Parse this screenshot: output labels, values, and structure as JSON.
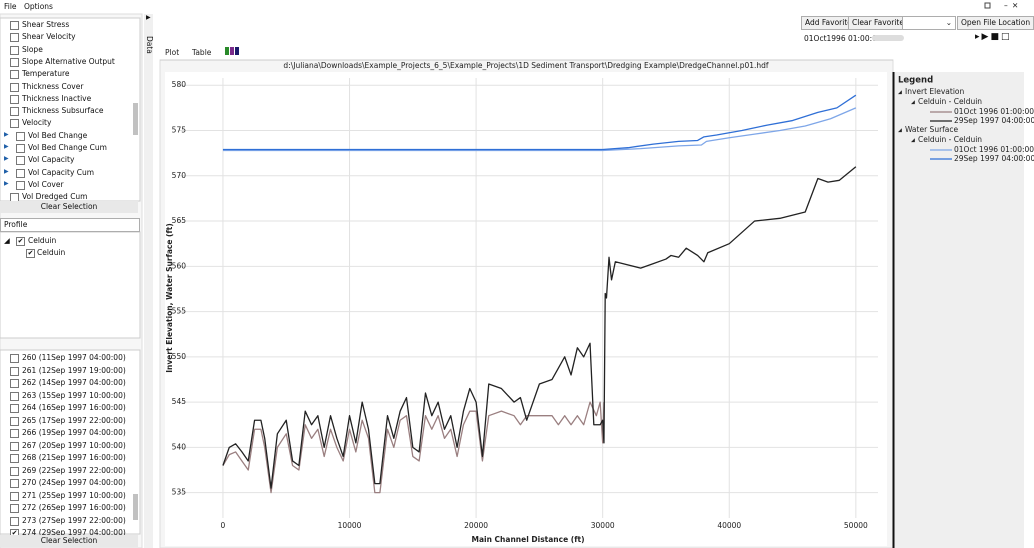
{
  "menu": [
    "File",
    "Options"
  ],
  "variables": {
    "items": [
      {
        "label": "Shear Stress",
        "expander": false
      },
      {
        "label": "Shear Velocity",
        "expander": false
      },
      {
        "label": "Slope",
        "expander": false
      },
      {
        "label": "Slope Alternative Output",
        "expander": false
      },
      {
        "label": "Temperature",
        "expander": false
      },
      {
        "label": "Thickness Cover",
        "expander": false
      },
      {
        "label": "Thickness Inactive",
        "expander": false
      },
      {
        "label": "Thickness Subsurface",
        "expander": false
      },
      {
        "label": "Velocity",
        "expander": false
      },
      {
        "label": "Vol Bed Change",
        "expander": true
      },
      {
        "label": "Vol Bed Change Cum",
        "expander": true
      },
      {
        "label": "Vol Capacity",
        "expander": true
      },
      {
        "label": "Vol Capacity Cum",
        "expander": true
      },
      {
        "label": "Vol Cover",
        "expander": true
      },
      {
        "label": "Vol Dredged Cum",
        "expander": false
      }
    ],
    "clear": "Clear Selection"
  },
  "profile": {
    "label": "Profile",
    "tree": [
      "Celduin",
      "Celduin"
    ]
  },
  "times": {
    "items": [
      {
        "label": "260 (11Sep 1997 04:00:00)",
        "checked": false
      },
      {
        "label": "261 (12Sep 1997 19:00:00)",
        "checked": false
      },
      {
        "label": "262 (14Sep 1997 04:00:00)",
        "checked": false
      },
      {
        "label": "263 (15Sep 1997 10:00:00)",
        "checked": false
      },
      {
        "label": "264 (16Sep 1997 16:00:00)",
        "checked": false
      },
      {
        "label": "265 (17Sep 1997 22:00:00)",
        "checked": false
      },
      {
        "label": "266 (19Sep 1997 04:00:00)",
        "checked": false
      },
      {
        "label": "267 (20Sep 1997 10:00:00)",
        "checked": false
      },
      {
        "label": "268 (21Sep 1997 16:00:00)",
        "checked": false
      },
      {
        "label": "269 (22Sep 1997 22:00:00)",
        "checked": false
      },
      {
        "label": "270 (24Sep 1997 04:00:00)",
        "checked": false
      },
      {
        "label": "271 (25Sep 1997 10:00:00)",
        "checked": false
      },
      {
        "label": "272 (26Sep 1997 16:00:00)",
        "checked": false
      },
      {
        "label": "273 (27Sep 1997 22:00:00)",
        "checked": false
      },
      {
        "label": "274 (29Sep 1997 04:00:00)",
        "checked": true
      }
    ],
    "clear": "Clear Selection"
  },
  "side_tab": "Data",
  "toolbar": {
    "buttons": [
      "Add Favorite",
      "Clear Favorites",
      "Open File Location"
    ],
    "time": "01Oct1996 01:00:00"
  },
  "tabs": [
    "Plot",
    "Table"
  ],
  "legend_title": "Legend",
  "chart_data": {
    "type": "line",
    "title": "d:\\Juliana\\Downloads\\Example_Projects_6_5\\Example_Projects\\1D Sediment Transport\\Dredging Example\\DredgeChannel.p01.hdf",
    "x_label": "Main Channel Distance (ft)",
    "y_label": "Invert Elevation, Water Surface (ft)",
    "xlim": [
      -3550,
      51750
    ],
    "ylim": [
      532.2,
      580.8
    ],
    "xticks": [
      0,
      10000,
      20000,
      30000,
      40000,
      50000
    ],
    "yticks": [
      535,
      540,
      545,
      550,
      555,
      560,
      565,
      570,
      575,
      580
    ],
    "grid": true,
    "series": [
      {
        "name": "01Oct 1996 01:00:00",
        "group": "Invert Elevation",
        "subgroup": "Celduin - Celduin",
        "color": "#9a7f80",
        "x": [
          0,
          500,
          1000,
          1500,
          2000,
          2500,
          3000,
          3300,
          3800,
          4300,
          5000,
          5500,
          6000,
          6500,
          7000,
          7500,
          8000,
          8500,
          9000,
          9500,
          10000,
          10500,
          11000,
          11500,
          12000,
          12400,
          13000,
          13500,
          14000,
          14500,
          15000,
          15500,
          16000,
          16500,
          17000,
          17500,
          18000,
          18500,
          19000,
          19500,
          20000,
          20500,
          21000,
          22000,
          23000,
          23500,
          24000,
          25000,
          26000,
          26500,
          27000,
          27500,
          28000,
          28500,
          29000,
          29500,
          29800,
          30000,
          30100
        ],
        "values": [
          538,
          539.2,
          539.5,
          538.5,
          537.5,
          542,
          542,
          540,
          535,
          540,
          541.5,
          538,
          537.5,
          542.5,
          541,
          542,
          539,
          542,
          540,
          538.5,
          542,
          539.5,
          543,
          541,
          535,
          535,
          542,
          540,
          543,
          543.5,
          539,
          538.5,
          543.5,
          542,
          543.5,
          541,
          542,
          539,
          542.5,
          544,
          544,
          538.5,
          543.5,
          544,
          543.5,
          542.5,
          543.5,
          543.5,
          543.5,
          542.5,
          543.5,
          542.5,
          543.5,
          542.5,
          545,
          543.5,
          545,
          540.5,
          545
        ]
      },
      {
        "name": "29Sep 1997 04:00:00",
        "group": "Invert Elevation",
        "subgroup": "Celduin - Celduin",
        "color": "#222222",
        "x": [
          0,
          500,
          1000,
          1500,
          2000,
          2500,
          3000,
          3300,
          3800,
          4300,
          5000,
          5500,
          6000,
          6500,
          7000,
          7500,
          8000,
          8500,
          9000,
          9500,
          10000,
          10500,
          11000,
          11500,
          12000,
          12400,
          13000,
          13500,
          14000,
          14500,
          15000,
          15500,
          16000,
          16500,
          17000,
          17500,
          18000,
          18500,
          19000,
          19500,
          20000,
          20500,
          21000,
          22000,
          23000,
          23500,
          24000,
          25000,
          26000,
          27000,
          27500,
          28000,
          28500,
          29000,
          29300,
          29800,
          30000,
          30100,
          30200,
          30300,
          30500,
          30700,
          31000,
          33000,
          34000,
          35000,
          35400,
          36000,
          36600,
          37500,
          38000,
          38300,
          40000,
          42000,
          44000,
          46000,
          47000,
          47800,
          48700,
          50000
        ],
        "values": [
          538,
          540,
          540.4,
          539.5,
          538.5,
          543,
          543,
          541,
          535.5,
          541.5,
          543,
          538.5,
          538,
          544,
          542.5,
          543.5,
          540,
          543.5,
          541,
          539,
          543.5,
          540.5,
          545,
          542,
          536,
          536,
          543.5,
          541,
          544,
          545.5,
          540,
          539.5,
          546,
          543.5,
          545,
          542,
          543.5,
          540,
          544,
          546.5,
          545,
          539,
          547,
          546.5,
          545,
          545.5,
          543,
          547,
          547.5,
          550,
          548,
          551,
          550,
          551.5,
          542.5,
          542.5,
          543,
          540.5,
          557,
          556.5,
          561,
          558.5,
          560.5,
          559.8,
          560.3,
          560.8,
          561.2,
          561,
          562,
          561.2,
          560.5,
          561.5,
          562.5,
          565,
          565.3,
          566,
          569.7,
          569.3,
          569.5,
          571
        ]
      },
      {
        "name": "01Oct 1996 01:00:00",
        "group": "Water Surface",
        "subgroup": "Celduin - Celduin",
        "color": "#7ea6e8",
        "x": [
          0,
          30000,
          33000,
          36000,
          37800,
          38200,
          40000,
          42000,
          44000,
          46000,
          48000,
          50000
        ],
        "values": [
          572.8,
          572.8,
          573,
          573.3,
          573.4,
          573.8,
          574.2,
          574.6,
          575,
          575.5,
          576.3,
          577.5
        ]
      },
      {
        "name": "29Sep 1997 04:00:00",
        "group": "Water Surface",
        "subgroup": "Celduin - Celduin",
        "color": "#2f6fd6",
        "x": [
          0,
          30000,
          32000,
          34000,
          36000,
          37500,
          38000,
          39000,
          41000,
          43000,
          45000,
          47000,
          48500,
          50000
        ],
        "values": [
          572.9,
          572.9,
          573.1,
          573.5,
          573.8,
          573.9,
          574.3,
          574.5,
          575,
          575.6,
          576.1,
          577,
          577.5,
          578.9
        ]
      }
    ]
  }
}
